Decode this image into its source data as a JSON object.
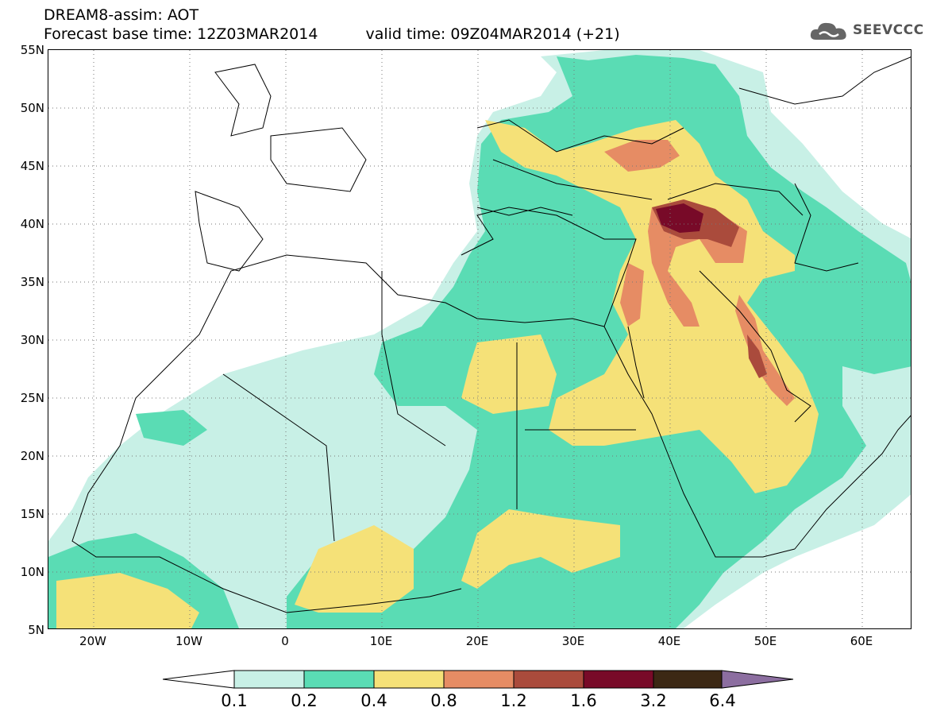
{
  "header": {
    "title": "DREAM8-assim: AOT",
    "base_time": "Forecast base time: 12Z03MAR2014",
    "valid_time": "valid time: 09Z04MAR2014 (+21)"
  },
  "logo": {
    "text": "SEEVCCC",
    "icon": "cloud-icon"
  },
  "axes": {
    "lat_labels": [
      "55N",
      "50N",
      "45N",
      "40N",
      "35N",
      "30N",
      "25N",
      "20N",
      "15N",
      "10N",
      "5N"
    ],
    "lon_labels": [
      "20W",
      "10W",
      "0",
      "10E",
      "20E",
      "30E",
      "40E",
      "50E",
      "60E"
    ]
  },
  "legend": {
    "colors": [
      "#ffffff",
      "#c8f0e6",
      "#5adcb4",
      "#f5e178",
      "#e68c64",
      "#aa4b3c",
      "#780a28",
      "#3c2814",
      "#8c6ea0"
    ],
    "labels": [
      "0.1",
      "0.2",
      "0.4",
      "0.8",
      "1.2",
      "1.6",
      "3.2",
      "6.4"
    ]
  }
}
